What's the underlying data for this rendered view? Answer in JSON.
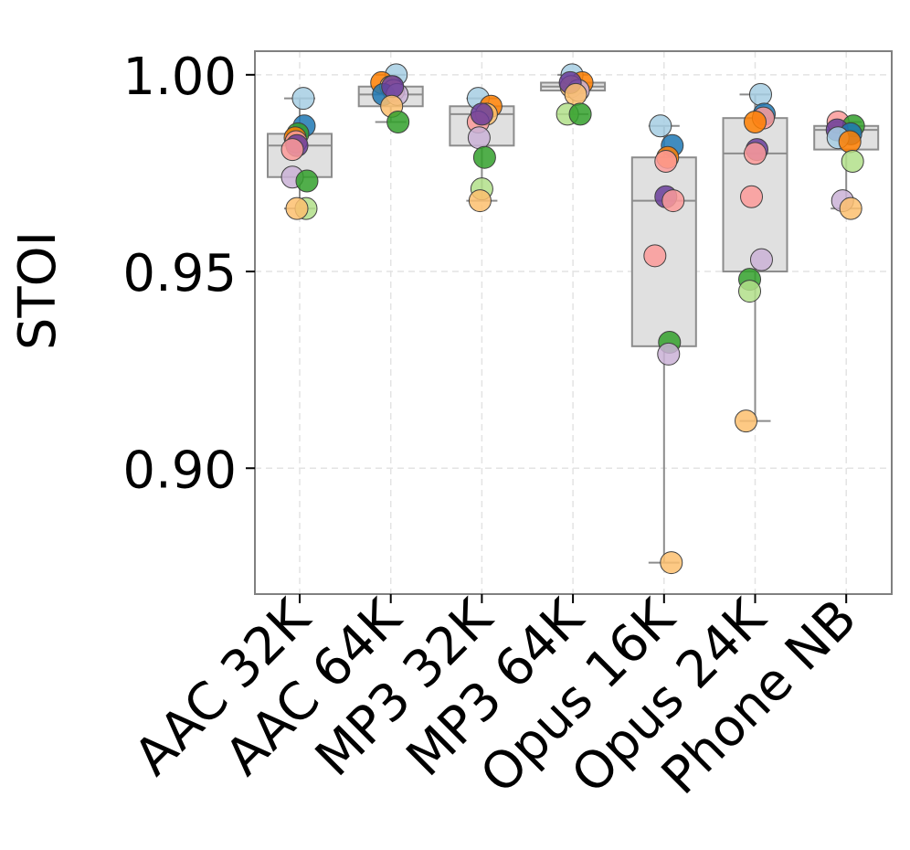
{
  "chart_data": {
    "type": "box-strip",
    "title": "",
    "xlabel": "",
    "ylabel": "STOI",
    "ylim": [
      0.868,
      1.006
    ],
    "yticks": [
      0.9,
      0.95,
      1.0
    ],
    "ytick_labels": [
      "0.90",
      "0.95",
      "1.00"
    ],
    "grid": true,
    "categories": [
      "AAC 32K",
      "AAC 64K",
      "MP3 32K",
      "MP3 64K",
      "Opus 16K",
      "Opus 24K",
      "Phone NB"
    ],
    "boxes": [
      {
        "category": "AAC 32K",
        "whisker_low": 0.966,
        "q1": 0.974,
        "median": 0.982,
        "q3": 0.985,
        "whisker_high": 0.994
      },
      {
        "category": "AAC 64K",
        "whisker_low": 0.988,
        "q1": 0.992,
        "median": 0.995,
        "q3": 0.997,
        "whisker_high": 1.0
      },
      {
        "category": "MP3 32K",
        "whisker_low": 0.968,
        "q1": 0.982,
        "median": 0.99,
        "q3": 0.992,
        "whisker_high": 0.994
      },
      {
        "category": "MP3 64K",
        "whisker_low": 0.99,
        "q1": 0.996,
        "median": 0.997,
        "q3": 0.998,
        "whisker_high": 1.0
      },
      {
        "category": "Opus 16K",
        "whisker_low": 0.876,
        "q1": 0.931,
        "median": 0.968,
        "q3": 0.979,
        "whisker_high": 0.987
      },
      {
        "category": "Opus 24K",
        "whisker_low": 0.912,
        "q1": 0.95,
        "median": 0.98,
        "q3": 0.989,
        "whisker_high": 0.995
      },
      {
        "category": "Phone NB",
        "whisker_low": 0.966,
        "q1": 0.981,
        "median": 0.986,
        "q3": 0.987,
        "whisker_high": 0.988
      }
    ],
    "points": [
      {
        "category": "AAC 32K",
        "values": [
          {
            "v": 0.994,
            "c": "#a6cee3",
            "j": 0.04
          },
          {
            "v": 0.987,
            "c": "#1f78b4",
            "j": 0.05
          },
          {
            "v": 0.985,
            "c": "#33a02c",
            "j": -0.02
          },
          {
            "v": 0.984,
            "c": "#ff7f00",
            "j": -0.05
          },
          {
            "v": 0.983,
            "c": "#fb9a99",
            "j": -0.04
          },
          {
            "v": 0.982,
            "c": "#6a3d9a",
            "j": -0.03
          },
          {
            "v": 0.981,
            "c": "#fb9a99",
            "j": -0.08
          },
          {
            "v": 0.974,
            "c": "#cab2d6",
            "j": -0.08
          },
          {
            "v": 0.973,
            "c": "#33a02c",
            "j": 0.08
          },
          {
            "v": 0.966,
            "c": "#b2df8a",
            "j": 0.07
          },
          {
            "v": 0.966,
            "c": "#fdbf6f",
            "j": -0.03
          }
        ]
      },
      {
        "category": "AAC 64K",
        "values": [
          {
            "v": 1.0,
            "c": "#a6cee3",
            "j": 0.06
          },
          {
            "v": 0.998,
            "c": "#ff7f00",
            "j": -0.1
          },
          {
            "v": 0.997,
            "c": "#fdbf6f",
            "j": 0.0
          },
          {
            "v": 0.996,
            "c": "#fb9a99",
            "j": 0.03
          },
          {
            "v": 0.995,
            "c": "#1f78b4",
            "j": -0.08
          },
          {
            "v": 0.995,
            "c": "#cab2d6",
            "j": 0.07
          },
          {
            "v": 0.997,
            "c": "#6a3d9a",
            "j": 0.02
          },
          {
            "v": 0.992,
            "c": "#fdbf6f",
            "j": 0.01
          },
          {
            "v": 0.988,
            "c": "#33a02c",
            "j": 0.08
          }
        ]
      },
      {
        "category": "MP3 32K",
        "values": [
          {
            "v": 0.994,
            "c": "#a6cee3",
            "j": -0.04
          },
          {
            "v": 0.992,
            "c": "#ff7f00",
            "j": 0.1
          },
          {
            "v": 0.99,
            "c": "#fdbf6f",
            "j": 0.05
          },
          {
            "v": 0.988,
            "c": "#fb9a99",
            "j": -0.04
          },
          {
            "v": 0.99,
            "c": "#6a3d9a",
            "j": 0.0
          },
          {
            "v": 0.984,
            "c": "#cab2d6",
            "j": -0.03
          },
          {
            "v": 0.979,
            "c": "#33a02c",
            "j": 0.03
          },
          {
            "v": 0.971,
            "c": "#b2df8a",
            "j": 0.0
          },
          {
            "v": 0.968,
            "c": "#fdbf6f",
            "j": -0.02
          }
        ]
      },
      {
        "category": "MP3 64K",
        "values": [
          {
            "v": 1.0,
            "c": "#a6cee3",
            "j": -0.01
          },
          {
            "v": 0.998,
            "c": "#ff7f00",
            "j": 0.1
          },
          {
            "v": 0.997,
            "c": "#fdbf6f",
            "j": -0.02
          },
          {
            "v": 0.996,
            "c": "#cab2d6",
            "j": 0.06
          },
          {
            "v": 0.998,
            "c": "#6a3d9a",
            "j": -0.03
          },
          {
            "v": 0.995,
            "c": "#fdbf6f",
            "j": 0.03
          },
          {
            "v": 0.99,
            "c": "#b2df8a",
            "j": -0.06
          },
          {
            "v": 0.99,
            "c": "#33a02c",
            "j": 0.08
          }
        ]
      },
      {
        "category": "Opus 16K",
        "values": [
          {
            "v": 0.987,
            "c": "#a6cee3",
            "j": -0.04
          },
          {
            "v": 0.982,
            "c": "#1f78b4",
            "j": 0.09
          },
          {
            "v": 0.979,
            "c": "#ff7f00",
            "j": 0.04
          },
          {
            "v": 0.978,
            "c": "#fb9a99",
            "j": 0.02
          },
          {
            "v": 0.969,
            "c": "#6a3d9a",
            "j": 0.02
          },
          {
            "v": 0.968,
            "c": "#fb9a99",
            "j": 0.1
          },
          {
            "v": 0.954,
            "c": "#fb9a99",
            "j": -0.1
          },
          {
            "v": 0.932,
            "c": "#33a02c",
            "j": 0.06
          },
          {
            "v": 0.929,
            "c": "#cab2d6",
            "j": 0.05
          },
          {
            "v": 0.876,
            "c": "#fdbf6f",
            "j": 0.08
          }
        ]
      },
      {
        "category": "Opus 24K",
        "values": [
          {
            "v": 0.995,
            "c": "#a6cee3",
            "j": 0.06
          },
          {
            "v": 0.99,
            "c": "#1f78b4",
            "j": 0.1
          },
          {
            "v": 0.989,
            "c": "#fb9a99",
            "j": 0.09
          },
          {
            "v": 0.988,
            "c": "#ff7f00",
            "j": 0.0
          },
          {
            "v": 0.981,
            "c": "#6a3d9a",
            "j": 0.02
          },
          {
            "v": 0.98,
            "c": "#fb9a99",
            "j": 0.0
          },
          {
            "v": 0.969,
            "c": "#fb9a99",
            "j": -0.04
          },
          {
            "v": 0.953,
            "c": "#cab2d6",
            "j": 0.07
          },
          {
            "v": 0.948,
            "c": "#33a02c",
            "j": -0.06
          },
          {
            "v": 0.945,
            "c": "#b2df8a",
            "j": -0.06
          },
          {
            "v": 0.912,
            "c": "#fdbf6f",
            "j": -0.1
          }
        ]
      },
      {
        "category": "Phone NB",
        "values": [
          {
            "v": 0.988,
            "c": "#fb9a99",
            "j": -0.09
          },
          {
            "v": 0.987,
            "c": "#33a02c",
            "j": 0.08
          },
          {
            "v": 0.986,
            "c": "#6a3d9a",
            "j": -0.1
          },
          {
            "v": 0.985,
            "c": "#1f78b4",
            "j": 0.05
          },
          {
            "v": 0.984,
            "c": "#a6cee3",
            "j": -0.09
          },
          {
            "v": 0.983,
            "c": "#ff7f00",
            "j": 0.04
          },
          {
            "v": 0.978,
            "c": "#b2df8a",
            "j": 0.07
          },
          {
            "v": 0.968,
            "c": "#cab2d6",
            "j": -0.04
          },
          {
            "v": 0.966,
            "c": "#fdbf6f",
            "j": 0.05
          }
        ]
      }
    ]
  },
  "colors": {
    "box_fill": "#e0e0e0",
    "box_stroke": "#8c8c8c",
    "grid": "#e3e3e3",
    "frame": "#808080",
    "point_stroke": "#404040"
  }
}
